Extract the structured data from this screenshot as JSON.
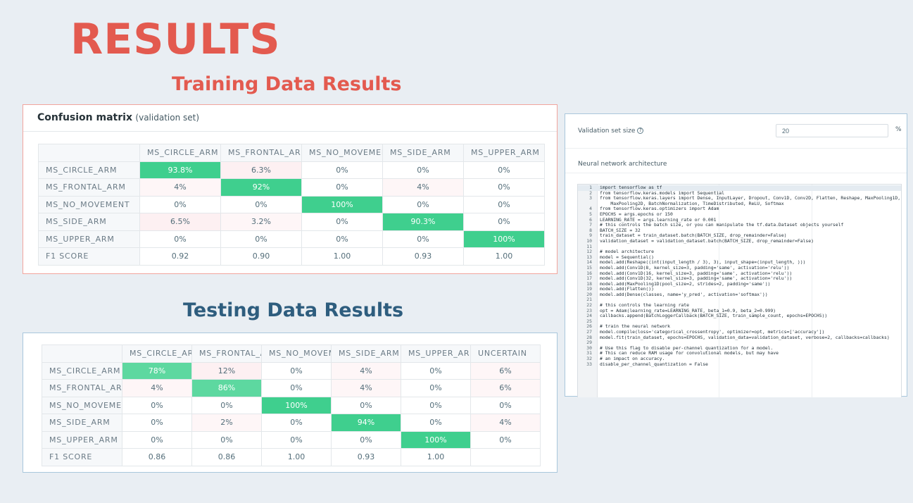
{
  "page": {
    "title": "RESULTS",
    "training_heading": "Training Data Results",
    "testing_heading": "Testing Data Results"
  },
  "training": {
    "panel_title": "Confusion matrix",
    "panel_subtitle": "(validation set)",
    "columns": [
      "MS_CIRCLE_ARM",
      "MS_FRONTAL_ARM",
      "MS_NO_MOVEMENT",
      "MS_SIDE_ARM",
      "MS_UPPER_ARM"
    ],
    "rows": [
      {
        "label": "MS_CIRCLE_ARM",
        "values": [
          "93.8%",
          "6.3%",
          "0%",
          "0%",
          "0%"
        ]
      },
      {
        "label": "MS_FRONTAL_ARM",
        "values": [
          "4%",
          "92%",
          "0%",
          "4%",
          "0%"
        ]
      },
      {
        "label": "MS_NO_MOVEMENT",
        "values": [
          "0%",
          "0%",
          "100%",
          "0%",
          "0%"
        ]
      },
      {
        "label": "MS_SIDE_ARM",
        "values": [
          "6.5%",
          "3.2%",
          "0%",
          "90.3%",
          "0%"
        ]
      },
      {
        "label": "MS_UPPER_ARM",
        "values": [
          "0%",
          "0%",
          "0%",
          "0%",
          "100%"
        ]
      }
    ],
    "f1": {
      "label": "F1 SCORE",
      "values": [
        "0.92",
        "0.90",
        "1.00",
        "0.93",
        "1.00"
      ]
    }
  },
  "testing": {
    "columns": [
      "MS_CIRCLE_ARM",
      "MS_FRONTAL_ARM",
      "MS_NO_MOVEMENT",
      "MS_SIDE_ARM",
      "MS_UPPER_ARM",
      "UNCERTAIN"
    ],
    "rows": [
      {
        "label": "MS_CIRCLE_ARM",
        "values": [
          "78%",
          "12%",
          "0%",
          "4%",
          "0%",
          "6%"
        ]
      },
      {
        "label": "MS_FRONTAL_ARM",
        "values": [
          "4%",
          "86%",
          "0%",
          "4%",
          "0%",
          "6%"
        ]
      },
      {
        "label": "MS_NO_MOVEMENT",
        "values": [
          "0%",
          "0%",
          "100%",
          "0%",
          "0%",
          "0%"
        ]
      },
      {
        "label": "MS_SIDE_ARM",
        "values": [
          "0%",
          "2%",
          "0%",
          "94%",
          "0%",
          "4%"
        ]
      },
      {
        "label": "MS_UPPER_ARM",
        "values": [
          "0%",
          "0%",
          "0%",
          "0%",
          "100%",
          "0%"
        ]
      }
    ],
    "f1": {
      "label": "F1 SCORE",
      "values": [
        "0.86",
        "0.86",
        "1.00",
        "0.93",
        "1.00",
        ""
      ]
    }
  },
  "config": {
    "validation_label": "Validation set size",
    "help_glyph": "?",
    "validation_value": "20",
    "validation_unit": "%",
    "nn_label": "Neural network architecture",
    "code_lines": [
      "import tensorflow as tf",
      "from tensorflow.keras.models import Sequential",
      "from tensorflow.keras.layers import Dense, InputLayer, Dropout, Conv1D, Conv2D, Flatten, Reshape, MaxPooling1D,",
      "    MaxPooling2D, BatchNormalization, TimeDistributed, ReLU, Softmax",
      "from tensorflow.keras.optimizers import Adam",
      "EPOCHS = args.epochs or 150",
      "LEARNING_RATE = args.learning_rate or 0.001",
      "# this controls the batch size, or you can manipulate the tf.data.Dataset objects yourself",
      "BATCH_SIZE = 32",
      "train_dataset = train_dataset.batch(BATCH_SIZE, drop_remainder=False)",
      "validation_dataset = validation_dataset.batch(BATCH_SIZE, drop_remainder=False)",
      "",
      "# model architecture",
      "model = Sequential()",
      "model.add(Reshape((int(input_length / 3), 3), input_shape=(input_length, )))",
      "model.add(Conv1D(8, kernel_size=3, padding='same', activation='relu'))",
      "model.add(Conv1D(16, kernel_size=3, padding='same', activation='relu'))",
      "model.add(Conv1D(32, kernel_size=3, padding='same', activation='relu'))",
      "model.add(MaxPooling1D(pool_size=2, strides=2, padding='same'))",
      "model.add(Flatten())",
      "model.add(Dense(classes, name='y_pred', activation='softmax'))",
      "",
      "# this controls the learning rate",
      "opt = Adam(learning_rate=LEARNING_RATE, beta_1=0.9, beta_2=0.999)",
      "callbacks.append(BatchLoggerCallback(BATCH_SIZE, train_sample_count, epochs=EPOCHS))",
      "",
      "# train the neural network",
      "model.compile(loss='categorical_crossentropy', optimizer=opt, metrics=['accuracy'])",
      "model.fit(train_dataset, epochs=EPOCHS, validation_data=validation_dataset, verbose=2, callbacks=callbacks)",
      "",
      "# Use this flag to disable per-channel quantization for a model.",
      "# This can reduce RAM usage for convolutional models, but may have",
      "# an impact on accuracy.",
      "disable_per_channel_quantization = False"
    ]
  },
  "colors": {
    "title_red": "#e35a4f",
    "title_blue": "#2e5d7e",
    "diag_green": "#3fcf8e",
    "off_diag_pink": "#fdf0f2"
  }
}
